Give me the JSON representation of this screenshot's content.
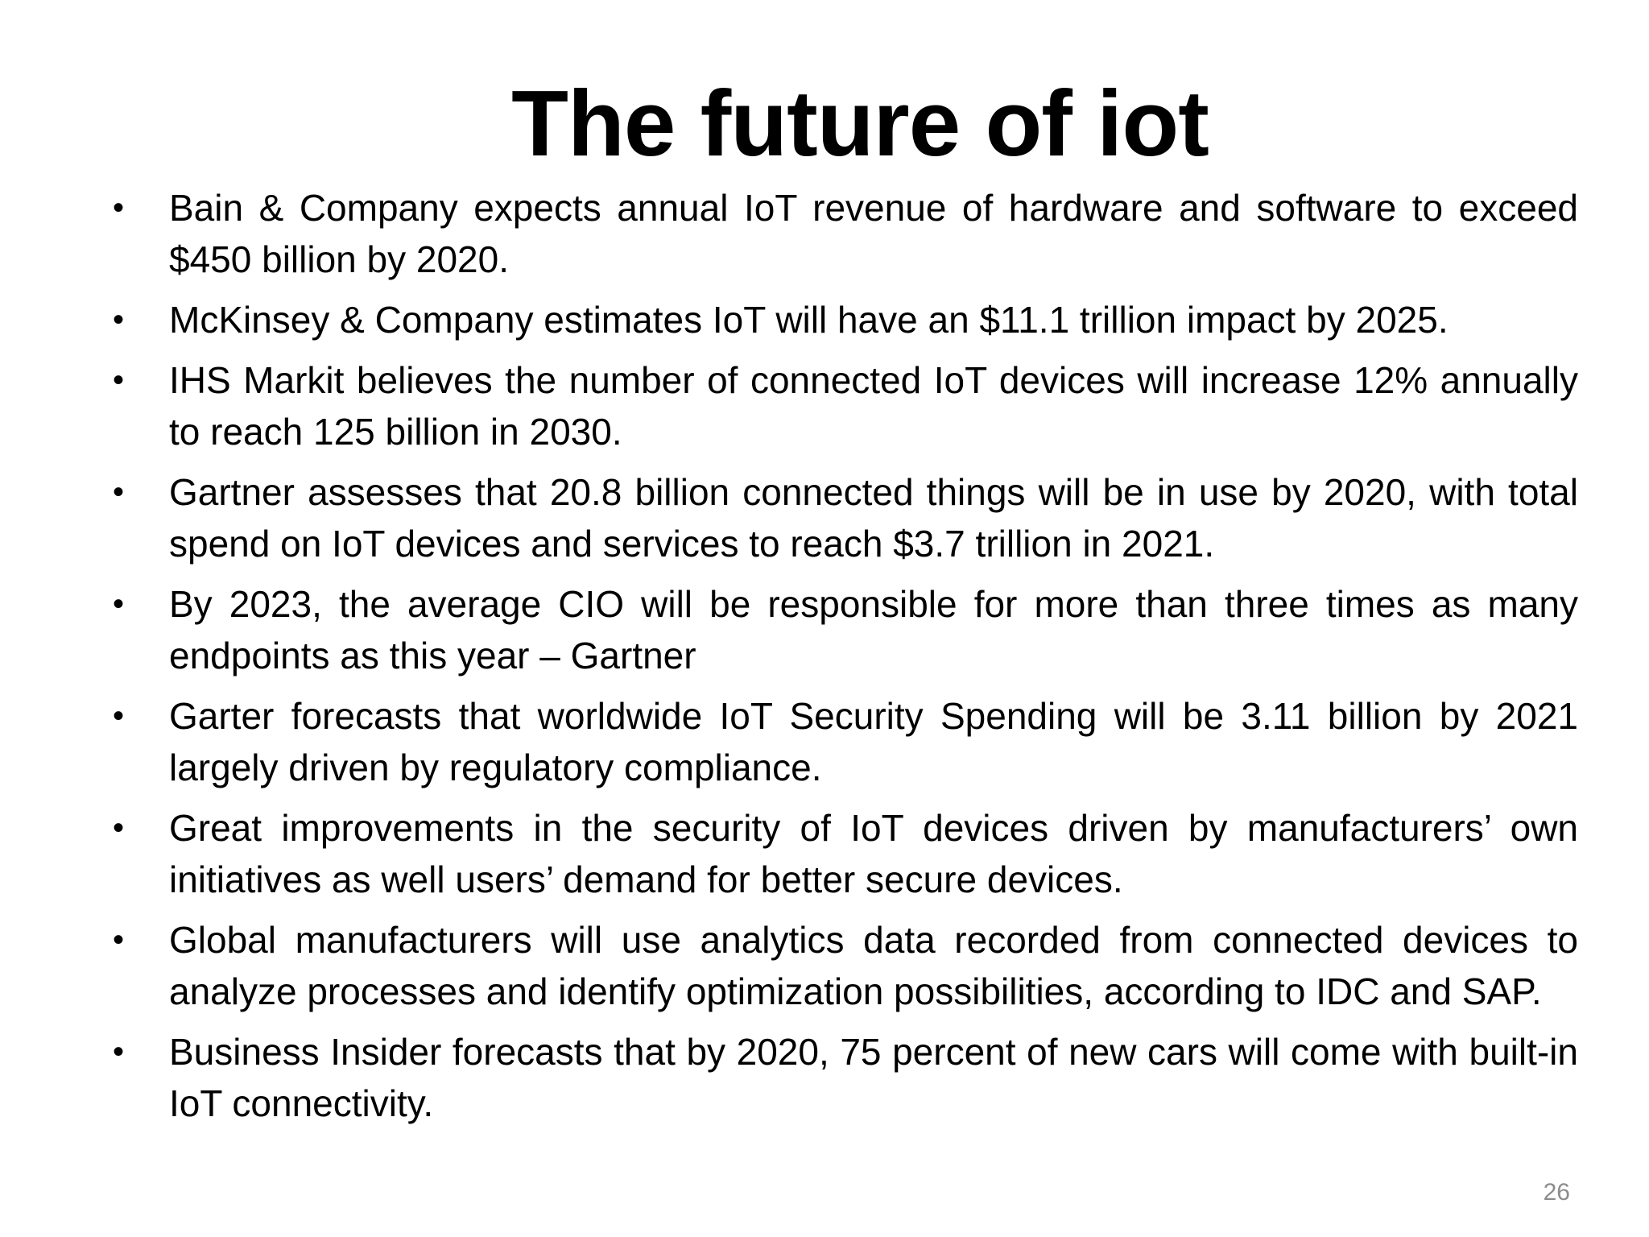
{
  "slide": {
    "title": "The future of iot",
    "bullet_symbol": "•",
    "bullets": [
      "Bain & Company expects annual IoT revenue of hardware and software to exceed $450 billion by 2020.",
      "McKinsey & Company estimates IoT will have an $11.1 trillion impact by 2025.",
      "IHS Markit believes the number of connected IoT devices will increase 12% annually to reach 125 billion in 2030.",
      "Gartner assesses that 20.8 billion connected things will be in use by 2020, with total spend on IoT devices and services to reach $3.7 trillion in 2021.",
      "By 2023, the average CIO will be responsible for more than three times as many endpoints as this year – Gartner",
      "Garter forecasts that worldwide IoT Security Spending  will be 3.11 billion by 2021 largely driven by regulatory compliance.",
      "Great improvements in the security of IoT devices driven by manufacturers’ own initiatives as well users’ demand for better secure devices.",
      "Global manufacturers will use analytics data recorded from connected devices to analyze processes and identify optimization possibilities, according to IDC and SAP.",
      "Business Insider forecasts that by 2020, 75 percent of new cars will come with built-in IoT connectivity."
    ],
    "page_number": "26"
  },
  "colors": {
    "background": "#ffffff",
    "text": "#000000",
    "page_number": "#8c8c8c"
  }
}
